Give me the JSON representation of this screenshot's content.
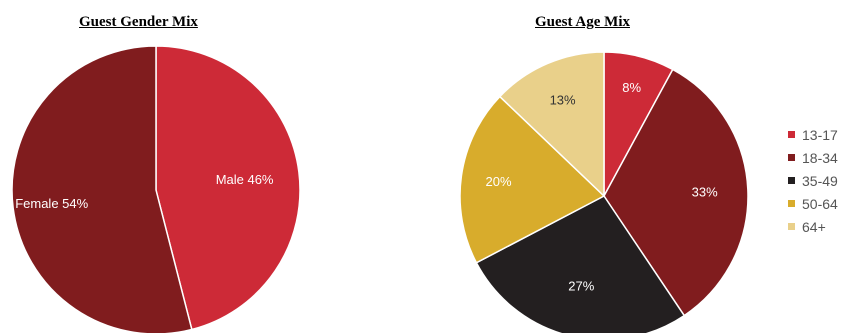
{
  "chart_data": [
    {
      "type": "pie",
      "title": "Guest Gender Mix",
      "slices": [
        {
          "label": "Male",
          "value": 46,
          "display": "Male 46%",
          "color": "#cd2a37"
        },
        {
          "label": "Female",
          "value": 54,
          "display": "Female 54%",
          "color": "#801c1e"
        }
      ]
    },
    {
      "type": "pie",
      "title": "Guest Age Mix",
      "slices": [
        {
          "label": "13-17",
          "value": 8,
          "display": "8%",
          "color": "#cd2a37"
        },
        {
          "label": "18-34",
          "value": 33,
          "display": "33%",
          "color": "#801c1e"
        },
        {
          "label": "35-49",
          "value": 27,
          "display": "27%",
          "color": "#231f20"
        },
        {
          "label": "50-64",
          "value": 20,
          "display": "20%",
          "color": "#d8ac2c"
        },
        {
          "label": "64+",
          "value": 13,
          "display": "13%",
          "color": "#e9d08a"
        }
      ],
      "legend": {
        "position": "right",
        "entries": [
          "13-17",
          "18-34",
          "35-49",
          "50-64",
          "64+"
        ]
      }
    }
  ]
}
